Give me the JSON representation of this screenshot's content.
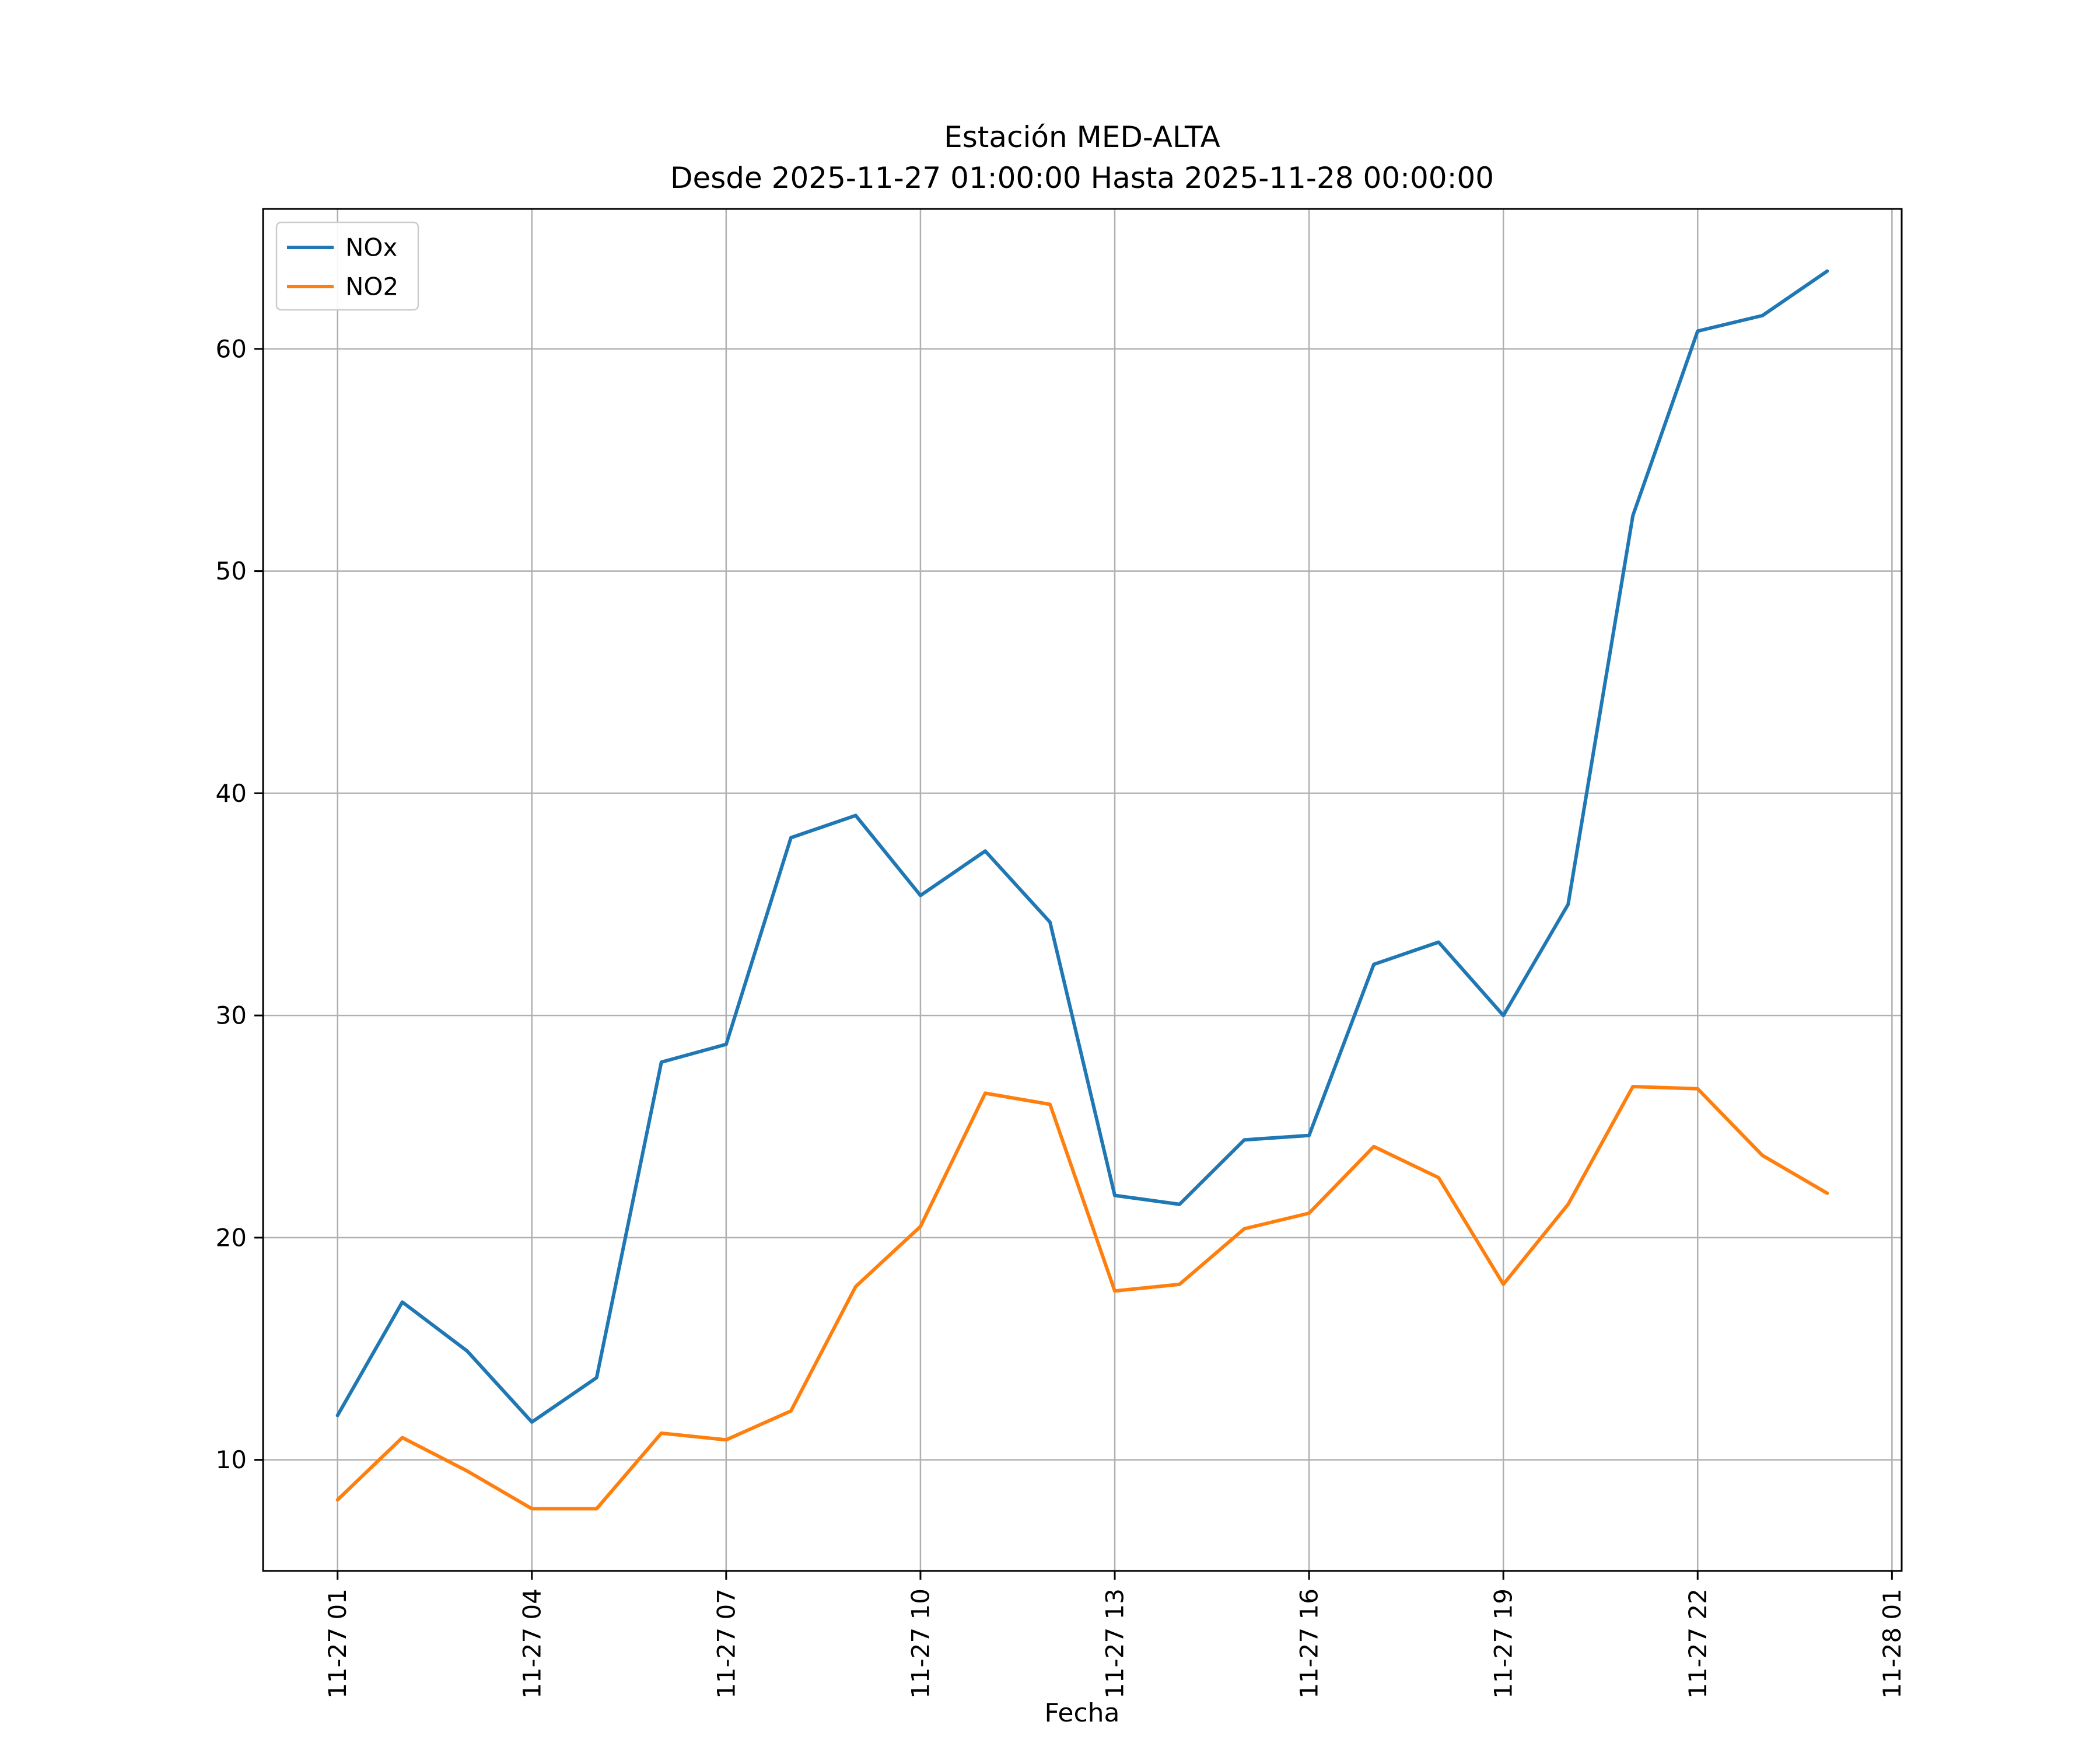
{
  "chart_data": {
    "type": "line",
    "title": "Estación MED-ALTA",
    "subtitle": "Desde 2025-11-27 01:00:00 Hasta 2025-11-28 00:00:00",
    "xlabel": "Fecha",
    "ylabel": "",
    "grid": true,
    "legend_position": "upper left",
    "xlim": [
      -0.15,
      25.15
    ],
    "ylim": [
      5.0,
      66.3
    ],
    "x_hours": [
      1,
      2,
      3,
      4,
      5,
      6,
      7,
      8,
      9,
      10,
      11,
      12,
      13,
      14,
      15,
      16,
      17,
      18,
      19,
      20,
      21,
      22,
      23,
      24
    ],
    "x_tick_hours": [
      1,
      4,
      7,
      10,
      13,
      16,
      19,
      22,
      25
    ],
    "x_tick_labels": [
      "11-27 01",
      "11-27 04",
      "11-27 07",
      "11-27 10",
      "11-27 13",
      "11-27 16",
      "11-27 19",
      "11-27 22",
      "11-28 01"
    ],
    "y_ticks": [
      10,
      20,
      30,
      40,
      50,
      60
    ],
    "series": [
      {
        "name": "NOx",
        "color": "#1f77b4",
        "values": [
          12.0,
          17.1,
          14.9,
          11.7,
          13.7,
          27.9,
          28.7,
          38.0,
          39.0,
          35.4,
          37.4,
          34.2,
          21.9,
          21.5,
          24.4,
          24.6,
          32.3,
          33.3,
          30.0,
          35.0,
          52.5,
          60.8,
          61.5,
          63.5
        ]
      },
      {
        "name": "NO2",
        "color": "#ff7f0e",
        "values": [
          8.2,
          11.0,
          9.5,
          7.8,
          7.8,
          11.2,
          10.9,
          12.2,
          17.8,
          20.5,
          26.5,
          26.0,
          17.6,
          17.9,
          20.4,
          21.1,
          24.1,
          22.7,
          17.9,
          21.5,
          26.8,
          26.7,
          23.7,
          22.0
        ]
      }
    ],
    "grid_color": "#b0b0b0",
    "frame_color": "#000000",
    "legend_edge_color": "#cccccc"
  }
}
